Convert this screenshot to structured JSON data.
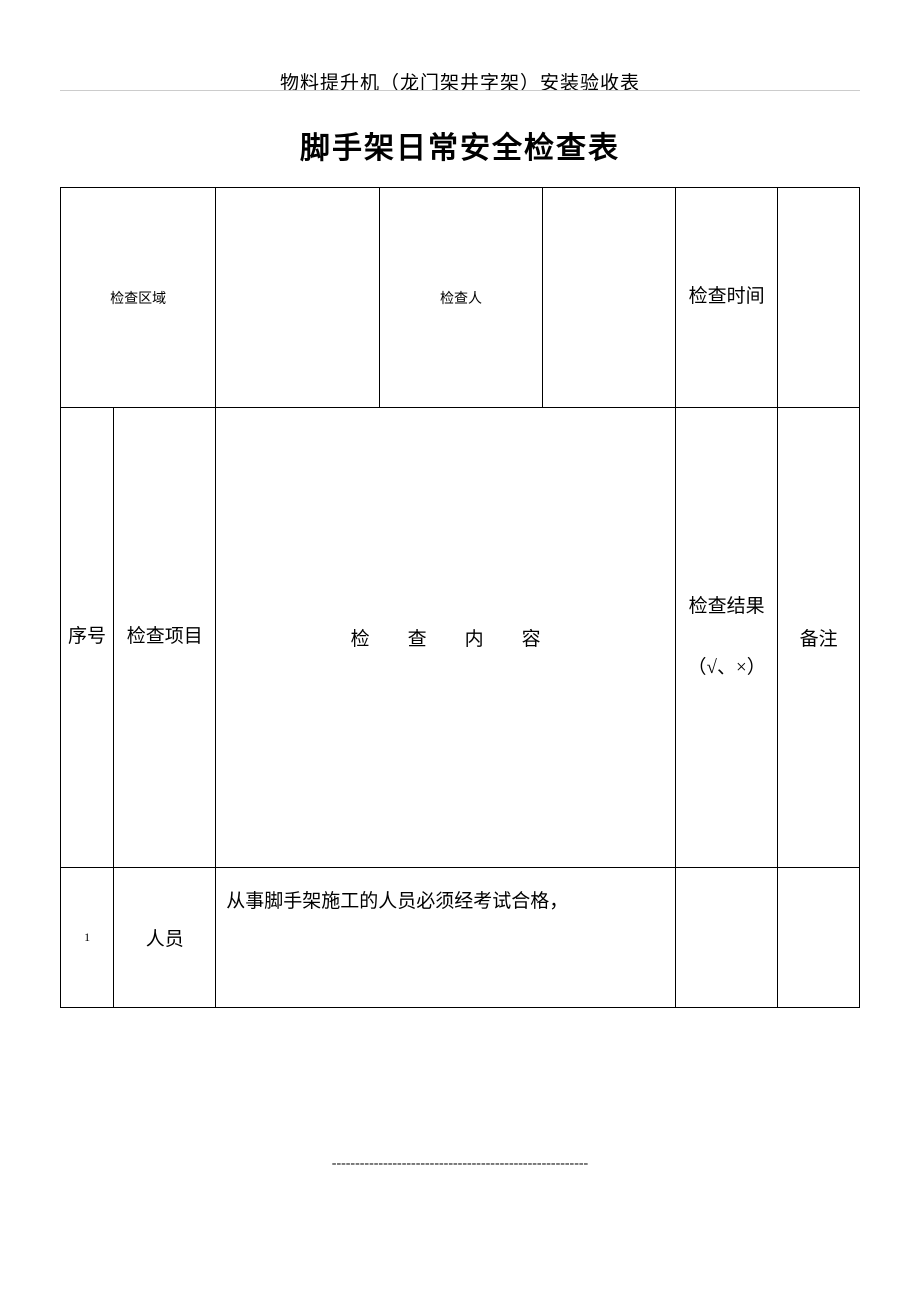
{
  "header": {
    "subtitle": "物料提升机（龙门架井字架）安装验收表"
  },
  "title": "脚手架日常安全检查表",
  "table": {
    "row1": {
      "area_label": "检查区域",
      "inspector_label": "检查人",
      "time_label": "检查时间"
    },
    "row2": {
      "seq_label": "序号",
      "item_label": "检查项目",
      "content_label": "检　　查　　内　　容",
      "result_label": "检查结果（√、×）",
      "note_label": "备注"
    },
    "row3": {
      "seq": "1",
      "item": "人员",
      "content": "从事脚手架施工的人员必须经考试合格，",
      "result": "",
      "note": ""
    }
  },
  "footer": {
    "dashes": "-------------------------------------------------------"
  },
  "colors": {
    "text": "#000000",
    "border": "#000000",
    "background": "#ffffff",
    "header_line": "#cccccc"
  },
  "fonts": {
    "body_family": "SimSun",
    "title_family": "SimHei",
    "title_size": 30,
    "body_size": 19,
    "small_size": 14
  }
}
